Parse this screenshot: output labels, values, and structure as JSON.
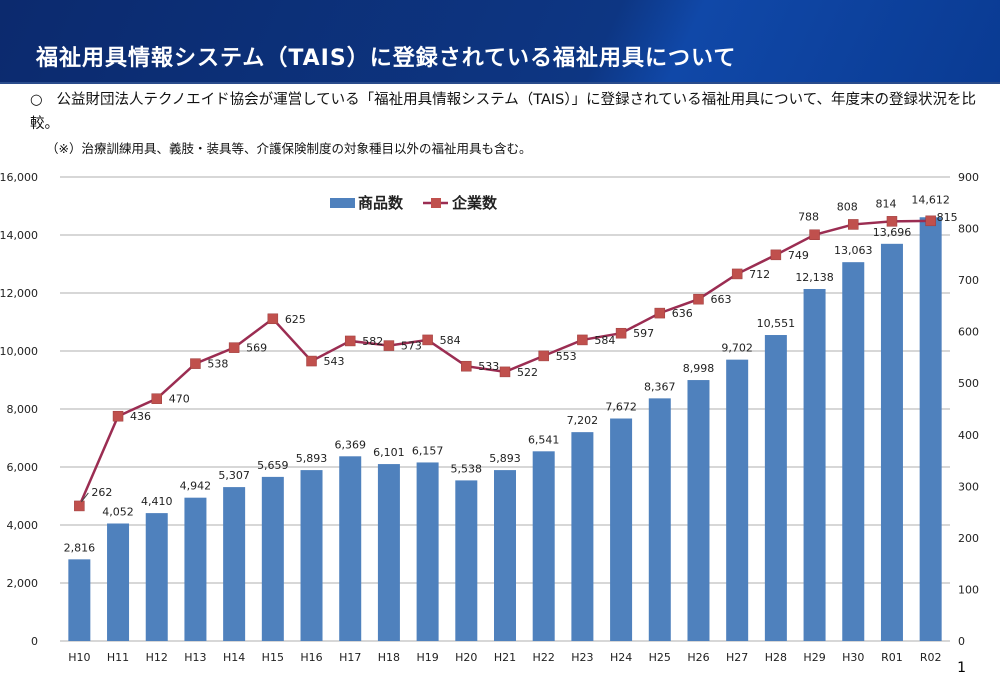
{
  "header": {
    "title": "福祉用具情報システム（TAIS）に登録されている福祉用具について"
  },
  "description": {
    "bullet": "○",
    "text": "公益財団法人テクノエイド協会が運営している「福祉用具情報システム（TAIS）」に登録されている福祉用具について、年度末の登録状況を比較。",
    "note": "（※）治療訓練用具、義肢・装具等、介護保険制度の対象種目以外の福祉用具も含む。"
  },
  "page_number": "1",
  "chart_data": {
    "type": "bar+line",
    "categories": [
      "H10",
      "H11",
      "H12",
      "H13",
      "H14",
      "H15",
      "H16",
      "H17",
      "H18",
      "H19",
      "H20",
      "H21",
      "H22",
      "H23",
      "H24",
      "H25",
      "H26",
      "H27",
      "H28",
      "H29",
      "H30",
      "R01",
      "R02"
    ],
    "series": [
      {
        "name": "商品数",
        "type": "bar",
        "axis": "left",
        "color": "#4f81bd",
        "values": [
          2816,
          4052,
          4410,
          4942,
          5307,
          5659,
          5893,
          6369,
          6101,
          6157,
          5538,
          5893,
          6541,
          7202,
          7672,
          8367,
          8998,
          9702,
          10551,
          12138,
          13063,
          13696,
          14612
        ]
      },
      {
        "name": "企業数",
        "type": "line",
        "axis": "right",
        "color": "#9b2d52",
        "marker_color": "#c0504d",
        "values": [
          262,
          436,
          470,
          538,
          569,
          625,
          543,
          582,
          573,
          584,
          533,
          522,
          553,
          584,
          597,
          636,
          663,
          712,
          749,
          788,
          808,
          814,
          815
        ]
      }
    ],
    "ylim_left": [
      0,
      16000
    ],
    "yticks_left": [
      0,
      2000,
      4000,
      6000,
      8000,
      10000,
      12000,
      14000,
      16000
    ],
    "ylim_right": [
      0,
      900
    ],
    "yticks_right": [
      0,
      100,
      200,
      300,
      400,
      500,
      600,
      700,
      800,
      900
    ],
    "grid": true,
    "legend": "top-center"
  }
}
